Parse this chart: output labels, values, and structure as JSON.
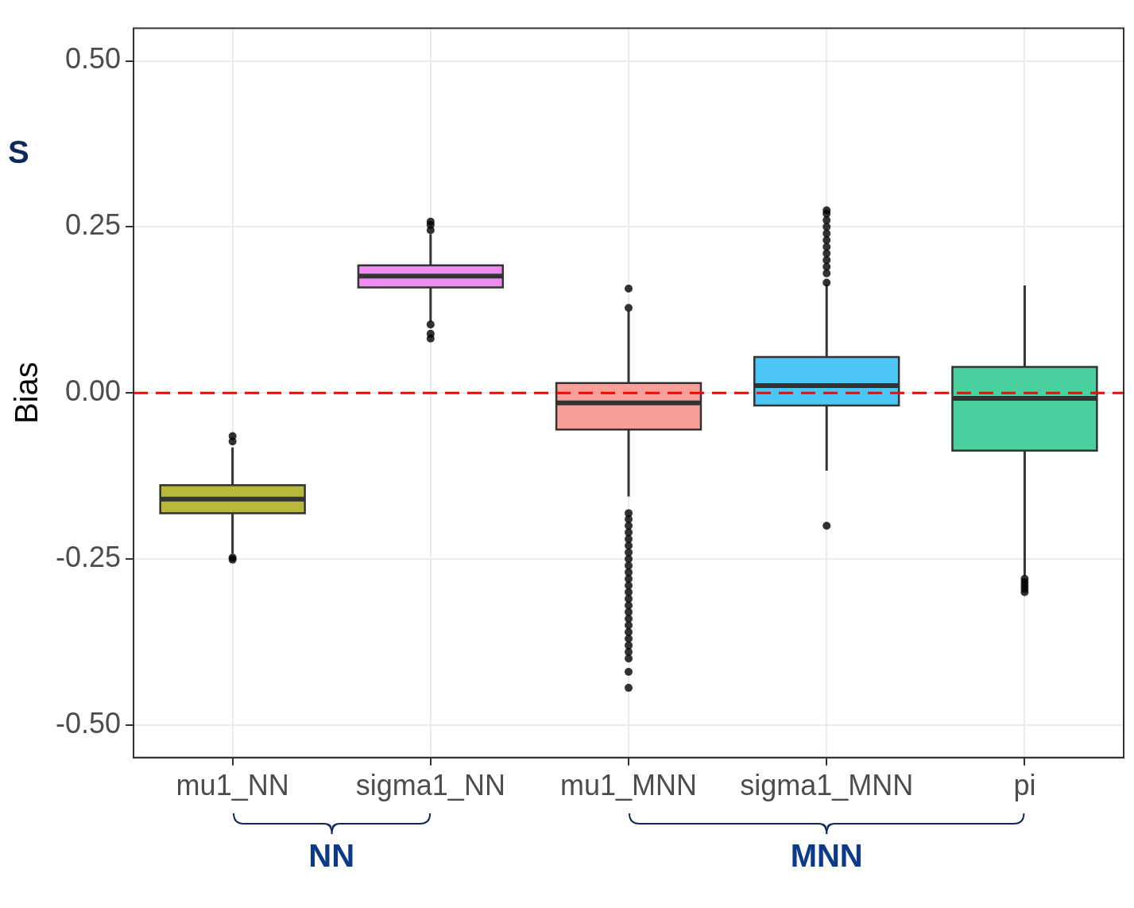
{
  "chart_data": {
    "type": "box",
    "ylabel": "Bias",
    "categories": [
      "mu1_NN",
      "sigma1_NN",
      "mu1_MNN",
      "sigma1_MNN",
      "pi"
    ],
    "colors": [
      "#b8b83b",
      "#ee8cf0",
      "#f8a097",
      "#4dc6f6",
      "#4ccf9e"
    ],
    "boxes": [
      {
        "low": -0.242,
        "q1": -0.181,
        "median": -0.16,
        "q3": -0.139,
        "high": -0.082,
        "outliers": [
          -0.065,
          -0.073,
          -0.248,
          -0.251
        ]
      },
      {
        "low": 0.107,
        "q1": 0.159,
        "median": 0.176,
        "q3": 0.192,
        "high": 0.239,
        "outliers": [
          0.258,
          0.253,
          0.245,
          0.103,
          0.089,
          0.082
        ]
      },
      {
        "low": -0.156,
        "q1": -0.055,
        "median": -0.015,
        "q3": 0.015,
        "high": 0.123,
        "outliers": [
          0.128,
          0.157,
          -0.181,
          -0.19,
          -0.2,
          -0.21,
          -0.22,
          -0.23,
          -0.24,
          -0.25,
          -0.26,
          -0.27,
          -0.28,
          -0.29,
          -0.3,
          -0.31,
          -0.32,
          -0.33,
          -0.34,
          -0.35,
          -0.36,
          -0.37,
          -0.38,
          -0.39,
          -0.4,
          -0.42,
          -0.444
        ]
      },
      {
        "low": -0.117,
        "q1": -0.019,
        "median": 0.011,
        "q3": 0.054,
        "high": 0.163,
        "outliers": [
          0.166,
          0.18,
          0.19,
          0.2,
          0.21,
          0.22,
          0.23,
          0.24,
          0.25,
          0.26,
          0.27,
          0.275,
          -0.2
        ]
      },
      {
        "low": -0.275,
        "q1": -0.087,
        "median": -0.008,
        "q3": 0.039,
        "high": 0.162,
        "outliers": [
          -0.28,
          -0.285,
          -0.29,
          -0.295,
          -0.3
        ]
      }
    ],
    "ylim": [
      -0.549,
      0.549
    ],
    "yticks": [
      {
        "value": -0.5,
        "label": "-0.50"
      },
      {
        "value": -0.25,
        "label": "-0.25"
      },
      {
        "value": 0,
        "label": "0.00"
      },
      {
        "value": 0.25,
        "label": "0.25"
      },
      {
        "value": 0.5,
        "label": "0.50"
      }
    ],
    "grid": true,
    "ref_lines": [
      {
        "axis": "y",
        "value": 0,
        "color": "#ff0000",
        "line_style": "dashed"
      }
    ],
    "annotations": [
      "S",
      "NN",
      "MNN"
    ]
  }
}
